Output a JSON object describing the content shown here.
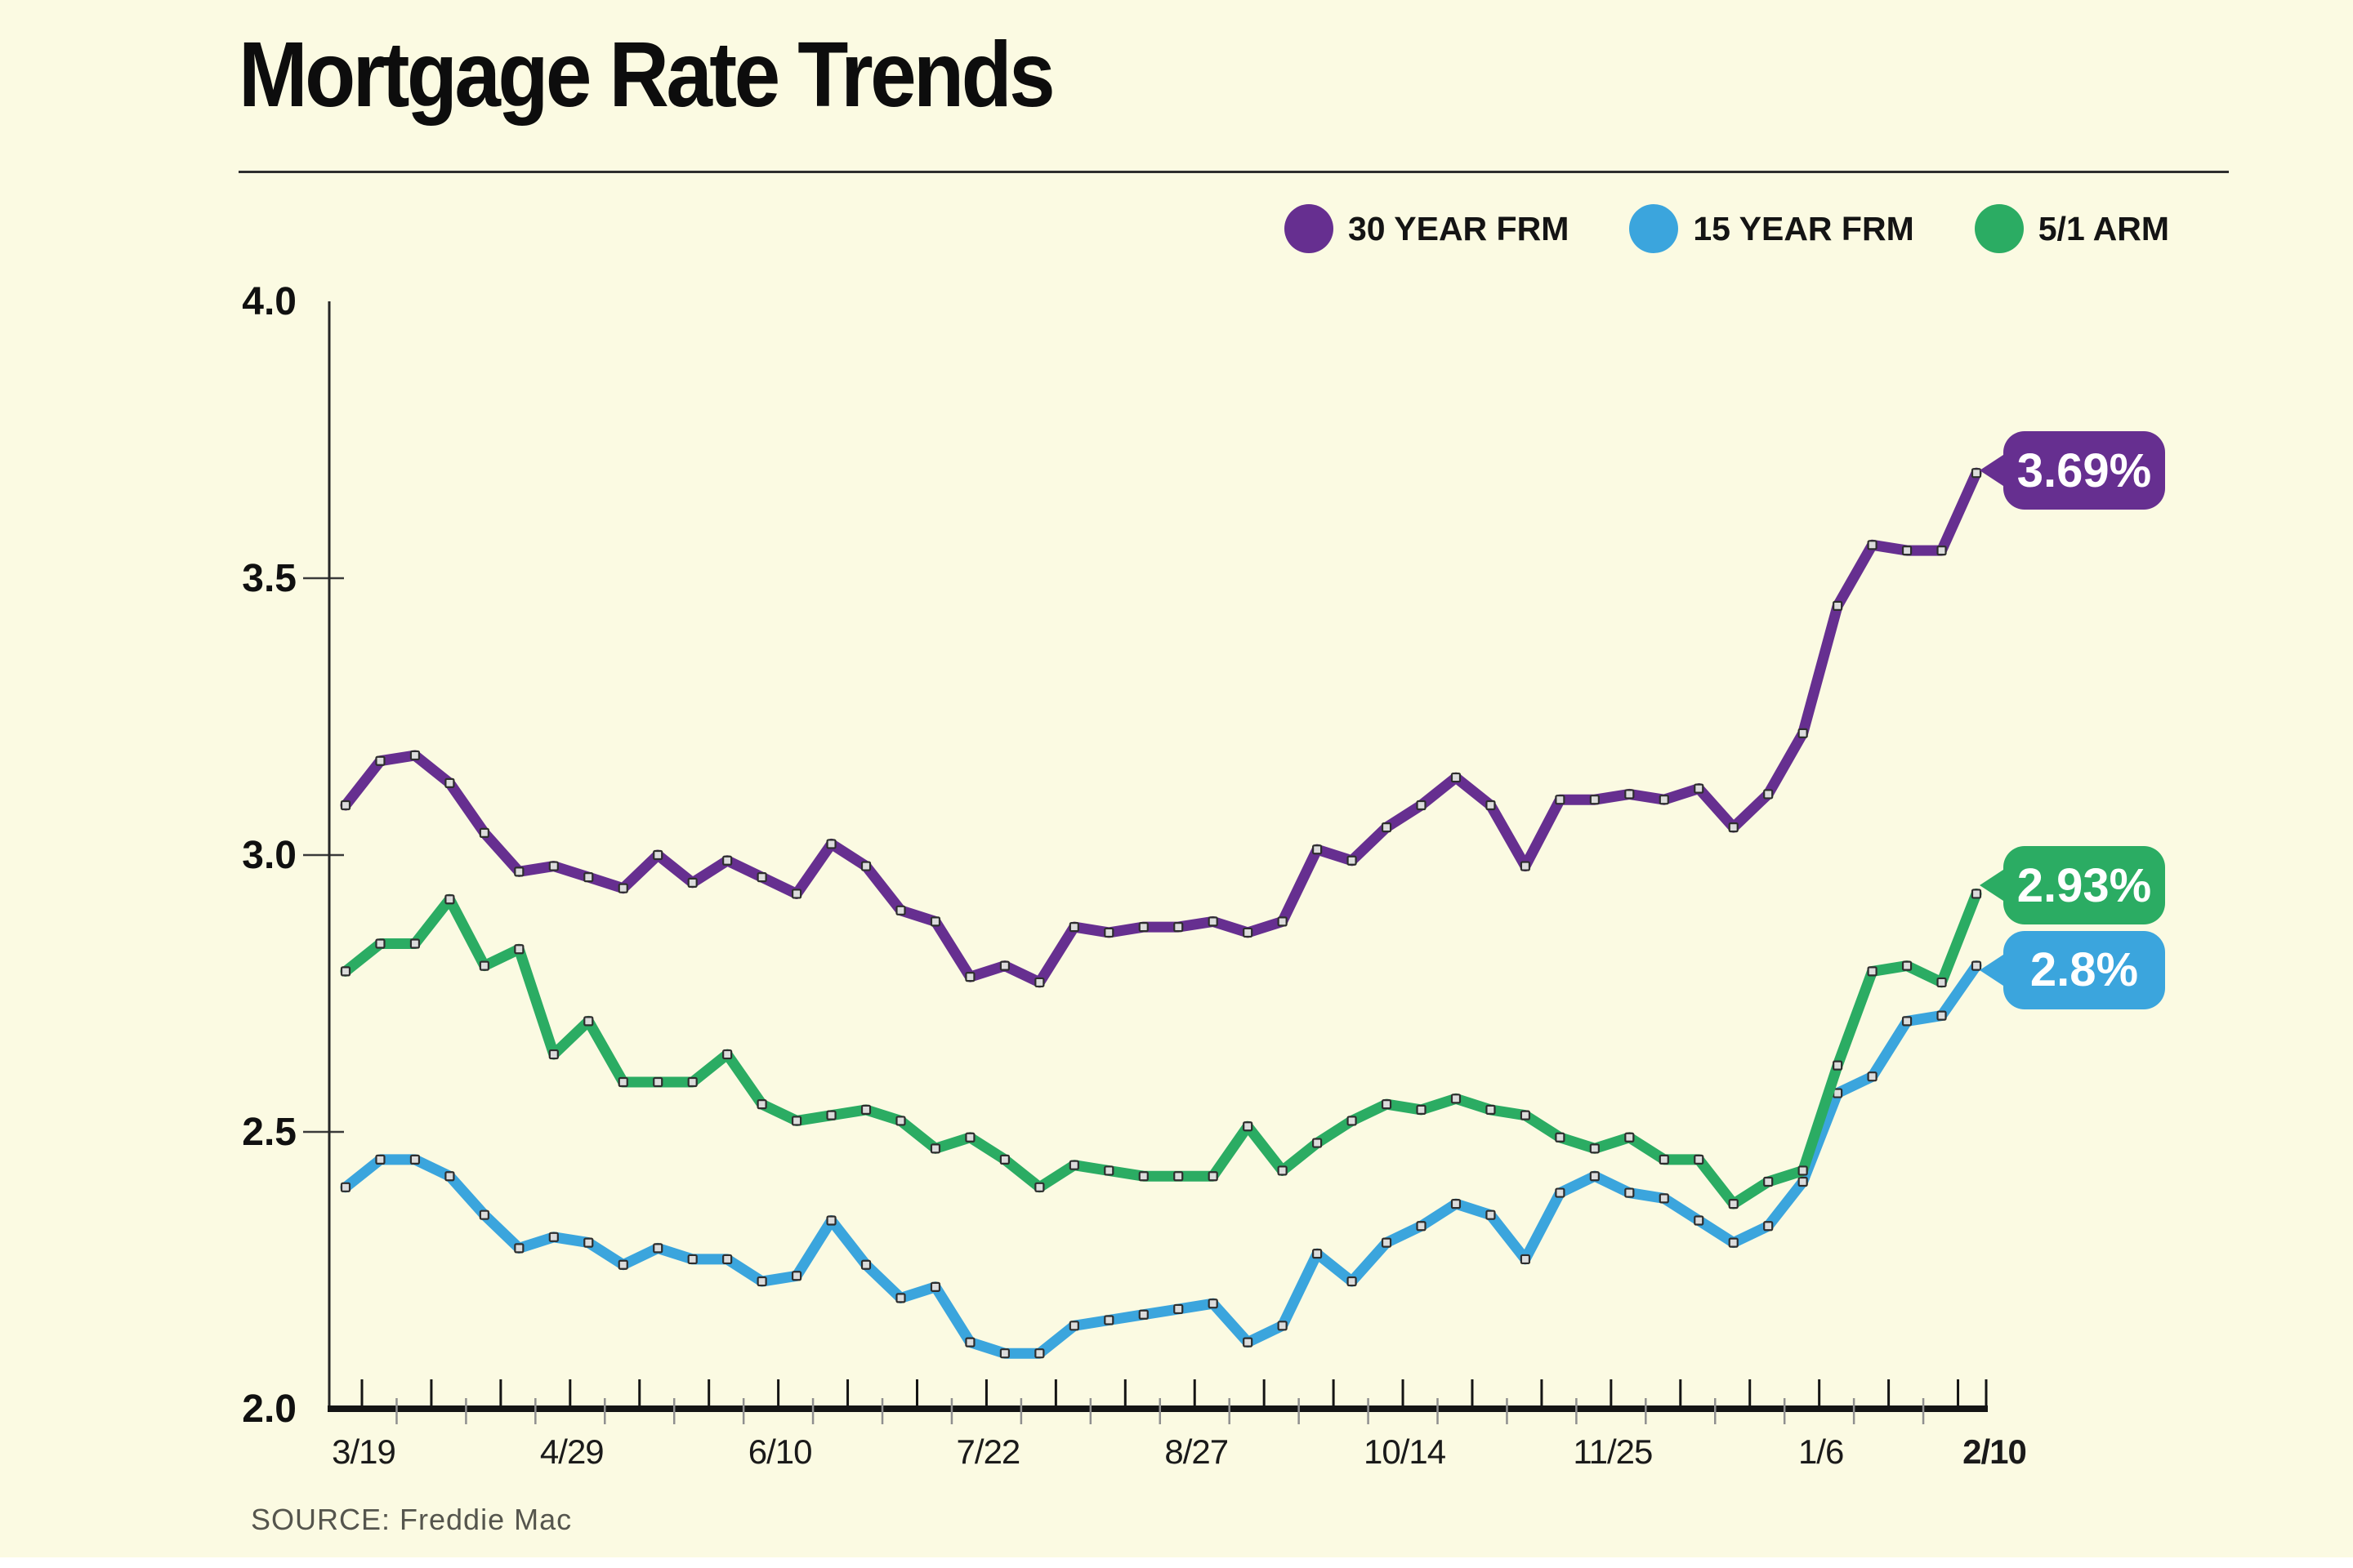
{
  "title": "Mortgage Rate Trends",
  "source": "SOURCE: Freddie Mac",
  "colors": {
    "background": "#FBFAE2",
    "purple": "#662F90",
    "blue": "#3BA5DD",
    "green": "#2BAC63",
    "axis": "#141414",
    "minor_tick": "#8F8F8F",
    "marker_fill": "#DCDCDC",
    "marker_border": "#2E2E2E"
  },
  "legend": {
    "items": [
      {
        "label": "30 YEAR FRM",
        "color": "#662F90"
      },
      {
        "label": "15 YEAR FRM",
        "color": "#3BA5DD"
      },
      {
        "label": "5/1 ARM",
        "color": "#2BAC63"
      }
    ]
  },
  "callouts": [
    {
      "label": "3.69%",
      "series": "30 YEAR FRM",
      "color": "#662F90"
    },
    {
      "label": "2.93%",
      "series": "5/1 ARM",
      "color": "#2BAC63"
    },
    {
      "label": "2.8%",
      "series": "15 YEAR FRM",
      "color": "#3BA5DD"
    }
  ],
  "chart_data": {
    "type": "line",
    "title": "Mortgage Rate Trends",
    "x_tick_labels": [
      "3/19",
      "4/29",
      "6/10",
      "7/22",
      "8/27",
      "10/14",
      "11/25",
      "1/6",
      "2/10"
    ],
    "x_tick_label_weeks": [
      0,
      6,
      12,
      18,
      24,
      30,
      36,
      42,
      47
    ],
    "n_points": 48,
    "y_ticks": [
      4.0,
      3.5,
      3.0,
      2.5,
      2.0
    ],
    "y_tick_labels": [
      "4.0",
      "3.5",
      "3.0",
      "2.5",
      "2.0"
    ],
    "ylim": [
      2.0,
      4.0
    ],
    "grid": "axis-ticks-only",
    "legend_position": "top-right",
    "series": [
      {
        "name": "30 YEAR FRM",
        "color": "#662F90",
        "end_label": "3.69%",
        "values": [
          3.09,
          3.17,
          3.18,
          3.13,
          3.04,
          2.97,
          2.98,
          2.96,
          2.94,
          3.0,
          2.95,
          2.99,
          2.96,
          2.93,
          3.02,
          2.98,
          2.9,
          2.88,
          2.78,
          2.8,
          2.77,
          2.87,
          2.86,
          2.87,
          2.87,
          2.88,
          2.86,
          2.88,
          3.01,
          2.99,
          3.05,
          3.09,
          3.14,
          3.09,
          2.98,
          3.1,
          3.1,
          3.11,
          3.1,
          3.12,
          3.05,
          3.11,
          3.22,
          3.45,
          3.56,
          3.55,
          3.55,
          3.69
        ]
      },
      {
        "name": "15 YEAR FRM",
        "color": "#3BA5DD",
        "end_label": "2.8%",
        "values": [
          2.4,
          2.45,
          2.45,
          2.42,
          2.35,
          2.29,
          2.31,
          2.3,
          2.26,
          2.29,
          2.27,
          2.27,
          2.23,
          2.24,
          2.34,
          2.26,
          2.2,
          2.22,
          2.12,
          2.1,
          2.1,
          2.15,
          2.16,
          2.17,
          2.18,
          2.19,
          2.12,
          2.15,
          2.28,
          2.23,
          2.3,
          2.33,
          2.37,
          2.35,
          2.27,
          2.39,
          2.42,
          2.39,
          2.38,
          2.34,
          2.3,
          2.33,
          2.41,
          2.57,
          2.6,
          2.7,
          2.71,
          2.8
        ]
      },
      {
        "name": "5/1 ARM",
        "color": "#2BAC63",
        "end_label": "2.93%",
        "values": [
          2.79,
          2.84,
          2.84,
          2.92,
          2.8,
          2.83,
          2.64,
          2.7,
          2.59,
          2.59,
          2.59,
          2.64,
          2.55,
          2.52,
          2.53,
          2.54,
          2.52,
          2.47,
          2.49,
          2.45,
          2.4,
          2.44,
          2.43,
          2.42,
          2.42,
          2.42,
          2.51,
          2.43,
          2.48,
          2.52,
          2.55,
          2.54,
          2.56,
          2.54,
          2.53,
          2.49,
          2.47,
          2.49,
          2.45,
          2.45,
          2.37,
          2.41,
          2.43,
          2.62,
          2.79,
          2.8,
          2.77,
          2.93
        ]
      }
    ]
  }
}
